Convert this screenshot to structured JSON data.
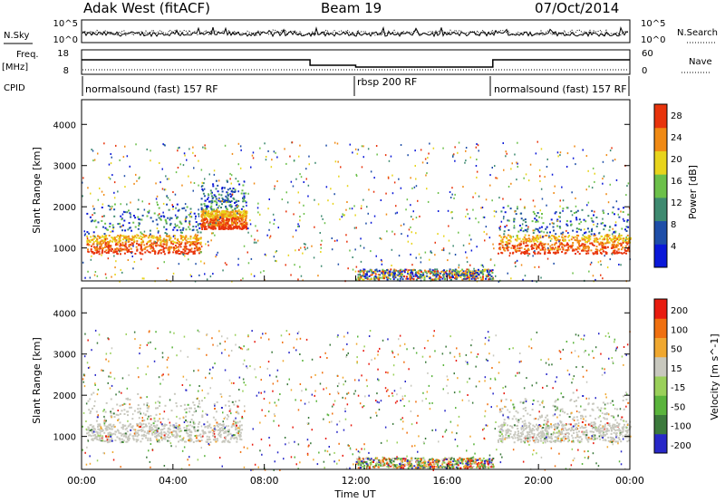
{
  "header": {
    "station": "Adak West (fitACF)",
    "beam": "Beam 19",
    "date": "07/Oct/2014"
  },
  "top_panels": {
    "nsky_label": "N.Sky",
    "nsky_ticks": [
      "10^5",
      "10^0"
    ],
    "nsearch_label": "N.Search",
    "nsearch_ticks": [
      "10^5",
      "10^0"
    ],
    "freq_label": "Freq.",
    "freq_unit": "[MHz]",
    "freq_ticks": [
      "18",
      "8"
    ],
    "nave_label": "Nave",
    "nave_ticks": [
      "60",
      "0"
    ],
    "cpid_label": "CPID",
    "cpid_segments": [
      {
        "label": "normalsound (fast) 157 RF",
        "start_h": 0,
        "end_h": 12
      },
      {
        "label": "rbsp 200 RF",
        "start_h": 12,
        "end_h": 18
      },
      {
        "label": "normalsound (fast) 157 RF",
        "start_h": 18,
        "end_h": 24
      }
    ]
  },
  "chart_data": [
    {
      "type": "heatmap",
      "ylabel": "Slant Range [km]",
      "yticks": [
        "1000",
        "2000",
        "3000",
        "4000"
      ],
      "colorbar_label": "Power [dB]",
      "colorbar_ticks": [
        "4",
        "8",
        "12",
        "16",
        "20",
        "24",
        "28"
      ],
      "colors": [
        "#0a18d8",
        "#1e4ea8",
        "#3e8a70",
        "#6cc04a",
        "#e8d41c",
        "#f08a14",
        "#e8340c"
      ],
      "structures": [
        {
          "name": "band",
          "from_h": 0.2,
          "to_h": 5.2,
          "range_km": 1100
        },
        {
          "name": "band",
          "from_h": 5.2,
          "to_h": 7.2,
          "range_km": 1700
        },
        {
          "name": "band",
          "from_h": 18.2,
          "to_h": 24,
          "range_km": 1100
        }
      ]
    },
    {
      "type": "heatmap",
      "xlabel": "Time UT",
      "xticks": [
        "00:00",
        "04:00",
        "08:00",
        "12:00",
        "16:00",
        "20:00",
        "00:00"
      ],
      "ylabel": "Slant Range [km]",
      "yticks": [
        "1000",
        "2000",
        "3000",
        "4000"
      ],
      "colorbar_label": "Velocity [m s^-1]",
      "colorbar_ticks": [
        "200",
        "100",
        "50",
        "15",
        "-15",
        "-50",
        "-100",
        "-200"
      ],
      "colors": [
        "#2828c8",
        "#3c7a3c",
        "#5ab43c",
        "#9ad05a",
        "#c8c8be",
        "#f0a830",
        "#f07010",
        "#e81c10"
      ],
      "structures": [
        {
          "name": "ground scatter",
          "from_h": 0.2,
          "to_h": 7.0,
          "range_km": 1100
        },
        {
          "name": "ground scatter",
          "from_h": 18.2,
          "to_h": 24,
          "range_km": 1100
        }
      ]
    }
  ]
}
